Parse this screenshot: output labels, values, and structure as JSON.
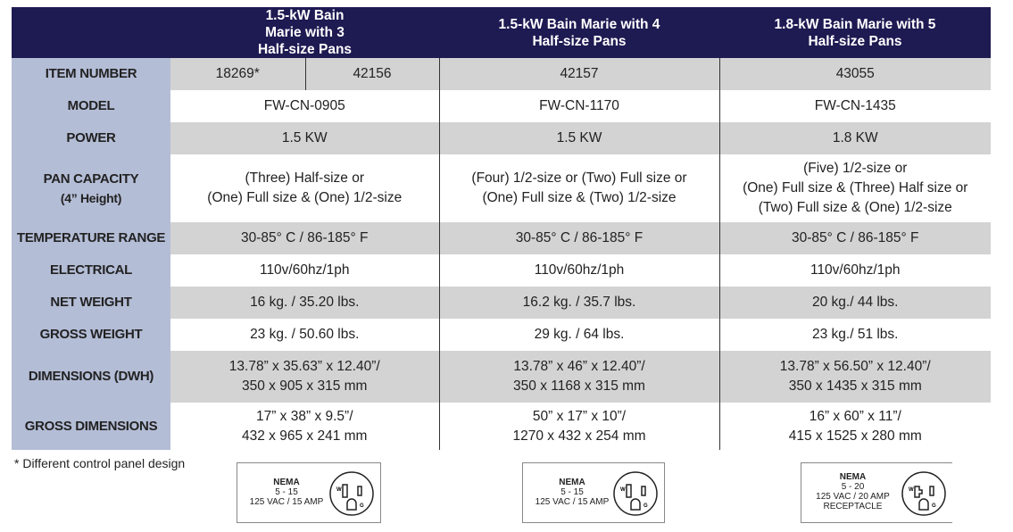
{
  "header": [
    "",
    "1.5-kW Bain Marie with 3 Half-size Pans",
    "1.5-kW Bain Marie with 4 Half-size Pans",
    "1.8-kW Bain Marie with 5 Half-size Pans"
  ],
  "rows": [
    {
      "label": "ITEM NUMBER",
      "c1a": "18269*",
      "c1b": "42156",
      "c2": "42157",
      "c3": "43055"
    },
    {
      "label": "MODEL",
      "c1": "FW-CN-0905",
      "c2": "FW-CN-1170",
      "c3": "FW-CN-1435"
    },
    {
      "label": "POWER",
      "c1": "1.5 KW",
      "c2": "1.5 KW",
      "c3": "1.8 KW"
    },
    {
      "label": "PAN CAPACITY",
      "sublabel": "(4” Height)",
      "c1": [
        "(Three) Half-size or",
        "(One) Full size & (One) 1/2-size"
      ],
      "c2": [
        "(Four) 1/2-size or (Two) Full size or",
        "(One) Full size & (Two) 1/2-size"
      ],
      "c3": [
        "(Five) 1/2-size or",
        "(One) Full size & (Three) Half size or",
        "(Two) Full size & (One) 1/2-size"
      ]
    },
    {
      "label": "TEMPERATURE RANGE",
      "c1": "30-85° C / 86-185° F",
      "c2": "30-85° C / 86-185° F",
      "c3": "30-85° C / 86-185° F"
    },
    {
      "label": "ELECTRICAL",
      "c1": "110v/60hz/1ph",
      "c2": "110v/60hz/1ph",
      "c3": "110v/60hz/1ph"
    },
    {
      "label": "NET WEIGHT",
      "c1": "16 kg. / 35.20 lbs.",
      "c2": "16.2 kg. / 35.7 lbs.",
      "c3": "20 kg./ 44 lbs."
    },
    {
      "label": "GROSS WEIGHT",
      "c1": "23 kg. / 50.60 lbs.",
      "c2": "29 kg. / 64 lbs.",
      "c3": "23 kg./ 51 lbs."
    },
    {
      "label": "DIMENSIONS (DWH)",
      "c1": [
        "13.78” x  35.63”  x 12.40”/",
        "350 x 905 x 315 mm"
      ],
      "c2": [
        "13.78” x  46”  x 12.40”/",
        "350 x 1168 x 315 mm"
      ],
      "c3": [
        "13.78” x  56.50”  x 12.40”/",
        "350 x 1435 x 315 mm"
      ]
    },
    {
      "label": "GROSS DIMENSIONS",
      "c1": [
        "17” x 38” x 9.5”/",
        "432 x 965 x 241 mm"
      ],
      "c2": [
        "50” x 17” x 10”/",
        "1270 x 432 x 254 mm"
      ],
      "c3": [
        "16” x 60” x 11”/",
        "415 x 1525 x 280 mm"
      ]
    }
  ],
  "footnote": "*  Different control panel design",
  "nema": [
    {
      "title": "NEMA",
      "type": "5 - 15",
      "rating": "125 VAC / 15 AMP"
    },
    {
      "title": "NEMA",
      "type": "5 - 15",
      "rating": "125 VAC / 15 AMP"
    },
    {
      "title": "NEMA",
      "type": "5 - 20",
      "rating": "125 VAC / 20 AMP",
      "extra": "RECEPTACLE"
    }
  ],
  "colors": {
    "header": "#1e1a52",
    "label_col": "#b4bdd6",
    "stripe": "#d3d3d3"
  }
}
